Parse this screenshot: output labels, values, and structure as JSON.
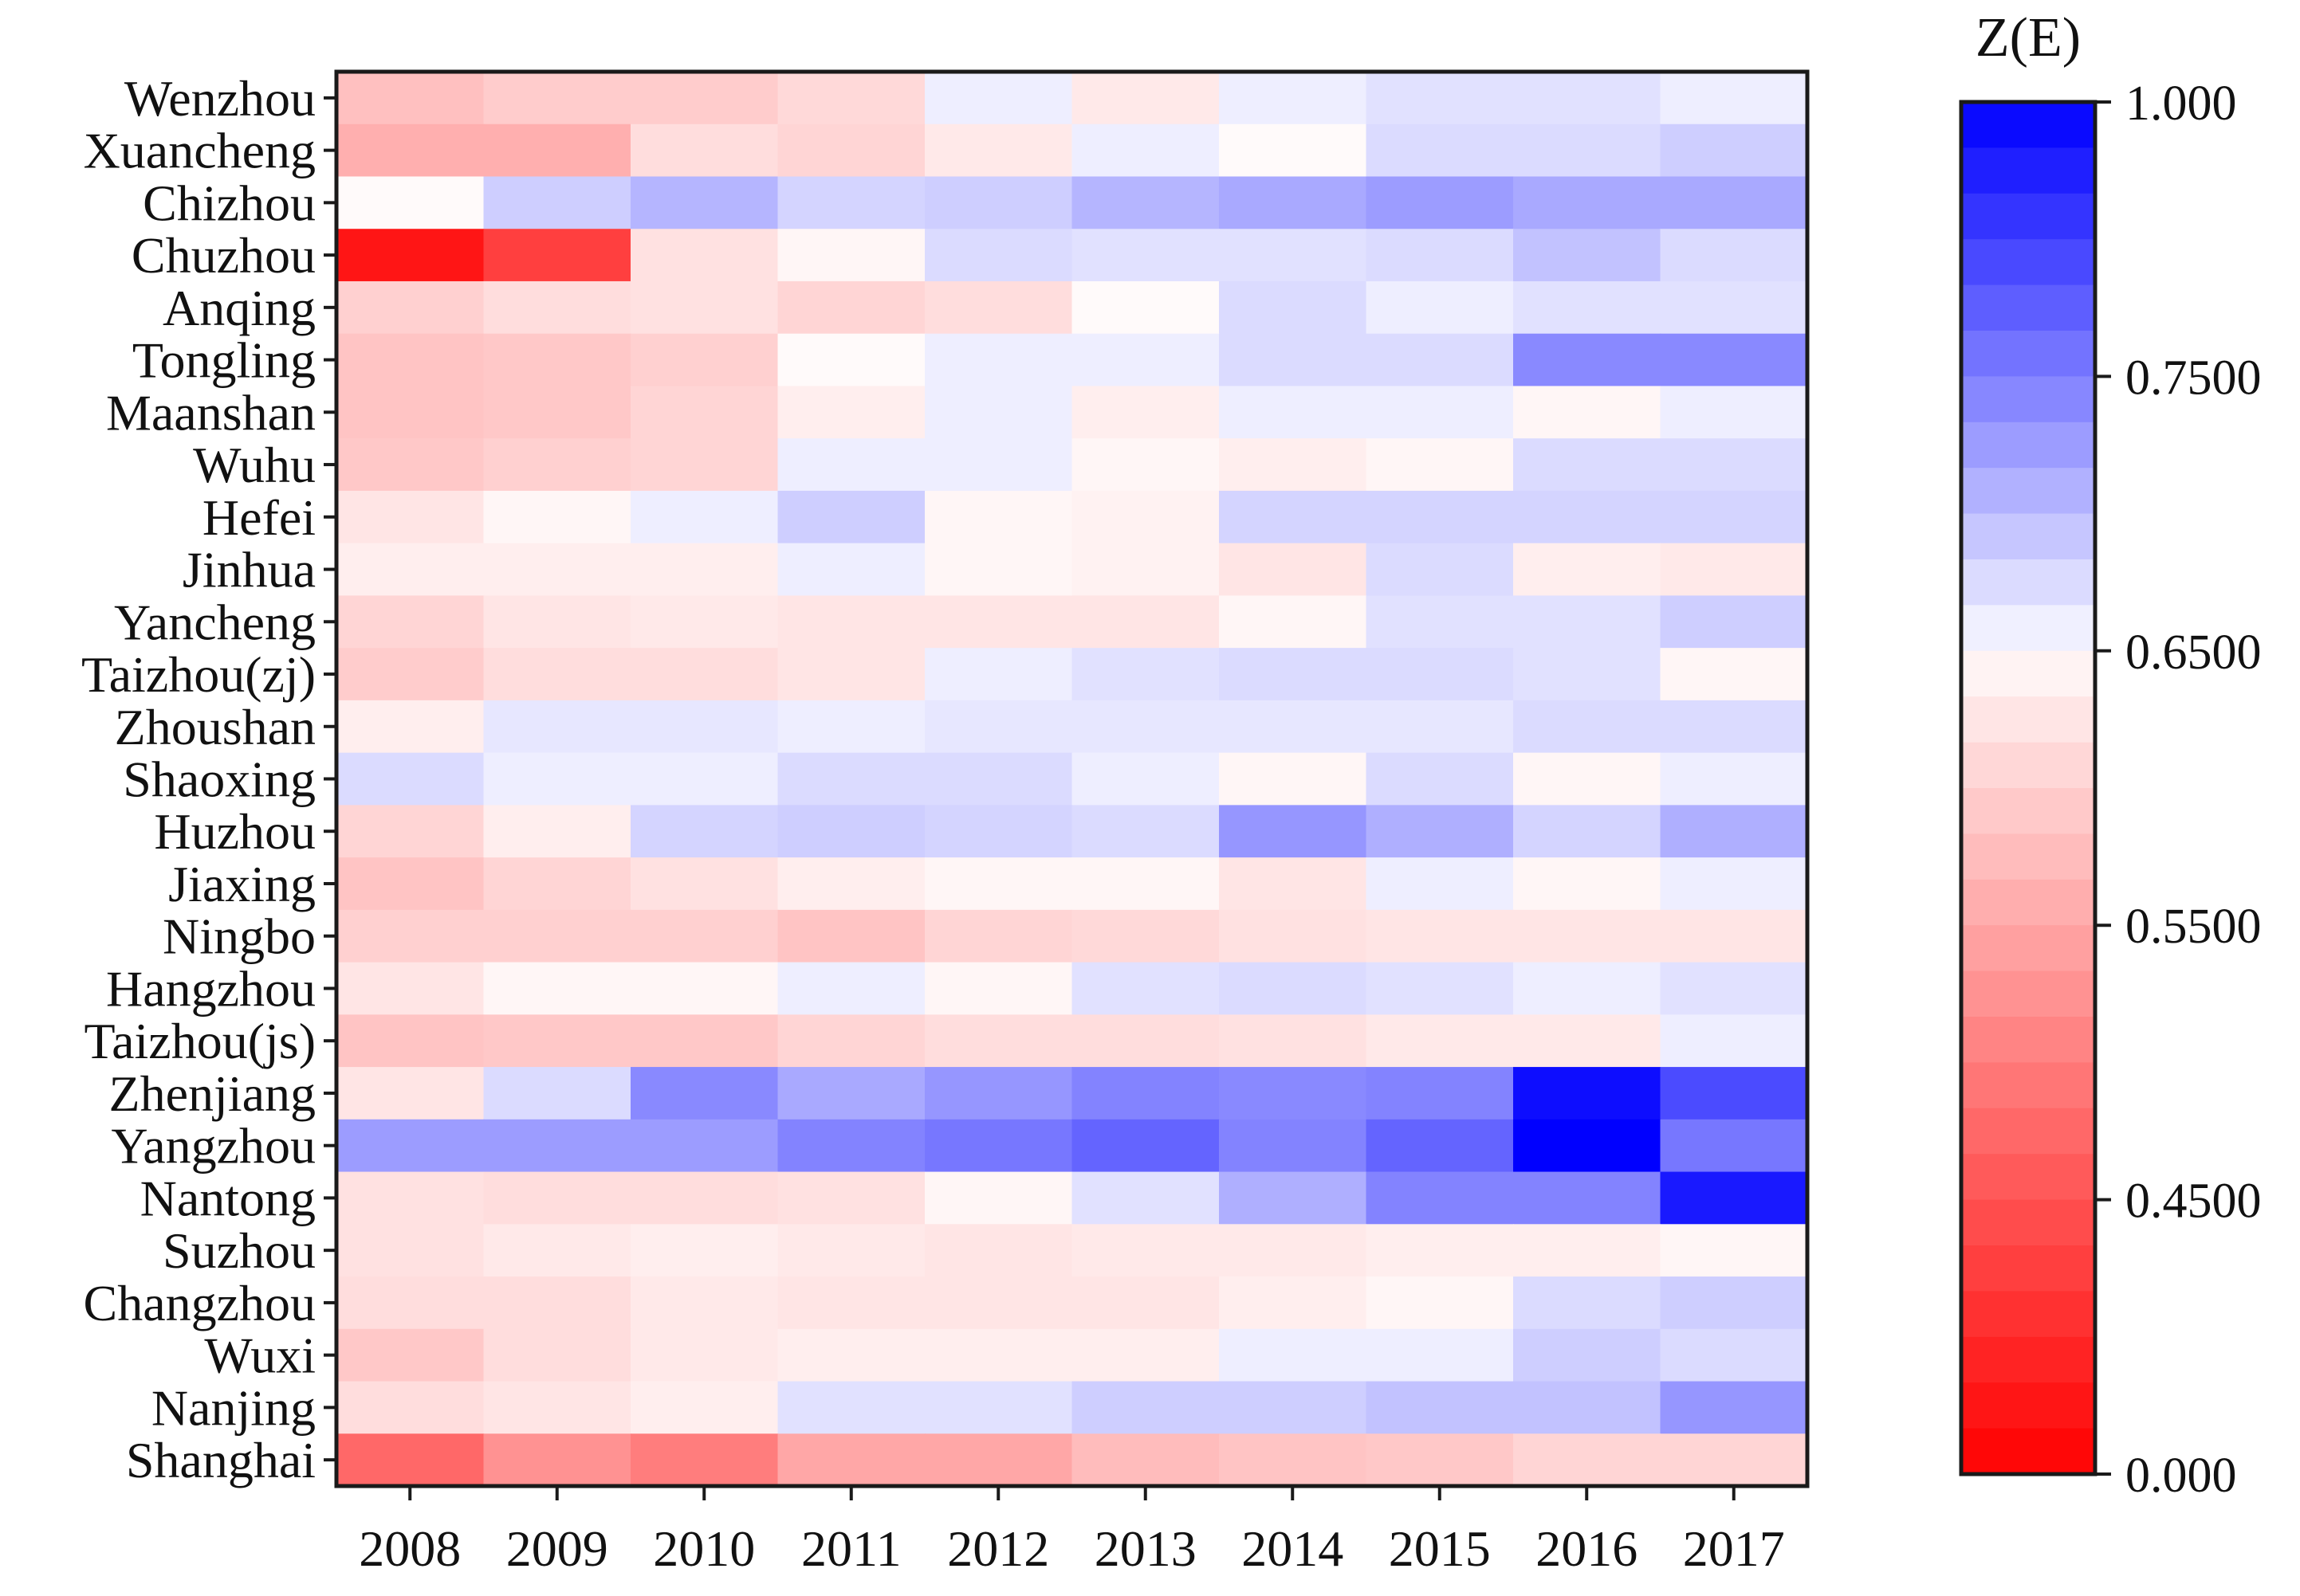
{
  "chart_data": {
    "type": "heatmap",
    "title": "",
    "xlabel": "",
    "ylabel": "",
    "colorbar_title": "Z(E)",
    "colorbar_tick_labels": [
      "1.000",
      "0.7500",
      "0.6500",
      "0.5500",
      "0.4500",
      "0.000"
    ],
    "x": [
      "2008",
      "2009",
      "2010",
      "2011",
      "2012",
      "2013",
      "2014",
      "2015",
      "2016",
      "2017"
    ],
    "y": [
      "Wenzhou",
      "Xuancheng",
      "Chizhou",
      "Chuzhou",
      "Anqing",
      "Tongling",
      "Maanshan",
      "Wuhu",
      "Hefei",
      "Jinhua",
      "Yancheng",
      "Taizhou(zj)",
      "Zhoushan",
      "Shaoxing",
      "Huzhou",
      "Jiaxing",
      "Ningbo",
      "Hangzhou",
      "Taizhou(js)",
      "Zhenjiang",
      "Yangzhou",
      "Nantong",
      "Suzhou",
      "Changzhou",
      "Wuxi",
      "Nanjing",
      "Shanghai"
    ],
    "values": [
      [
        0.46,
        0.49,
        0.49,
        0.52,
        0.62,
        0.56,
        0.62,
        0.64,
        0.64,
        0.62
      ],
      [
        0.42,
        0.42,
        0.53,
        0.51,
        0.56,
        0.62,
        0.6,
        0.65,
        0.65,
        0.67
      ],
      [
        0.6,
        0.67,
        0.71,
        0.66,
        0.67,
        0.71,
        0.73,
        0.75,
        0.73,
        0.73
      ],
      [
        0.05,
        0.15,
        0.54,
        0.59,
        0.65,
        0.64,
        0.64,
        0.65,
        0.69,
        0.65
      ],
      [
        0.5,
        0.53,
        0.54,
        0.51,
        0.53,
        0.6,
        0.65,
        0.62,
        0.64,
        0.64
      ],
      [
        0.47,
        0.48,
        0.5,
        0.6,
        0.62,
        0.62,
        0.65,
        0.65,
        0.78,
        0.78
      ],
      [
        0.47,
        0.48,
        0.51,
        0.57,
        0.62,
        0.57,
        0.62,
        0.62,
        0.59,
        0.62
      ],
      [
        0.48,
        0.5,
        0.51,
        0.62,
        0.62,
        0.59,
        0.57,
        0.59,
        0.65,
        0.65
      ],
      [
        0.55,
        0.59,
        0.62,
        0.67,
        0.59,
        0.58,
        0.66,
        0.66,
        0.66,
        0.66
      ],
      [
        0.57,
        0.57,
        0.57,
        0.62,
        0.59,
        0.58,
        0.55,
        0.65,
        0.57,
        0.56
      ],
      [
        0.51,
        0.55,
        0.56,
        0.55,
        0.55,
        0.55,
        0.59,
        0.64,
        0.64,
        0.67
      ],
      [
        0.49,
        0.53,
        0.53,
        0.55,
        0.62,
        0.64,
        0.65,
        0.65,
        0.64,
        0.59
      ],
      [
        0.57,
        0.63,
        0.63,
        0.62,
        0.63,
        0.63,
        0.63,
        0.63,
        0.65,
        0.65
      ],
      [
        0.65,
        0.62,
        0.62,
        0.65,
        0.65,
        0.62,
        0.59,
        0.65,
        0.59,
        0.62
      ],
      [
        0.51,
        0.57,
        0.66,
        0.67,
        0.66,
        0.65,
        0.76,
        0.72,
        0.66,
        0.72
      ],
      [
        0.47,
        0.51,
        0.54,
        0.57,
        0.59,
        0.59,
        0.55,
        0.62,
        0.59,
        0.62
      ],
      [
        0.5,
        0.5,
        0.5,
        0.47,
        0.51,
        0.52,
        0.54,
        0.55,
        0.55,
        0.55
      ],
      [
        0.55,
        0.59,
        0.59,
        0.62,
        0.59,
        0.64,
        0.65,
        0.64,
        0.62,
        0.64
      ],
      [
        0.47,
        0.48,
        0.48,
        0.51,
        0.53,
        0.53,
        0.54,
        0.56,
        0.56,
        0.62
      ],
      [
        0.55,
        0.65,
        0.78,
        0.73,
        0.76,
        0.79,
        0.78,
        0.79,
        0.98,
        0.88
      ],
      [
        0.75,
        0.75,
        0.75,
        0.79,
        0.81,
        0.84,
        0.79,
        0.84,
        1.0,
        0.81
      ],
      [
        0.54,
        0.53,
        0.53,
        0.54,
        0.59,
        0.64,
        0.72,
        0.79,
        0.79,
        0.96
      ],
      [
        0.54,
        0.56,
        0.57,
        0.56,
        0.55,
        0.56,
        0.56,
        0.57,
        0.57,
        0.59
      ],
      [
        0.53,
        0.53,
        0.56,
        0.55,
        0.55,
        0.55,
        0.57,
        0.59,
        0.65,
        0.67
      ],
      [
        0.48,
        0.53,
        0.56,
        0.57,
        0.57,
        0.57,
        0.62,
        0.62,
        0.67,
        0.65
      ],
      [
        0.53,
        0.55,
        0.57,
        0.64,
        0.64,
        0.67,
        0.67,
        0.69,
        0.69,
        0.76
      ],
      [
        0.25,
        0.35,
        0.3,
        0.4,
        0.4,
        0.45,
        0.47,
        0.48,
        0.51,
        0.51
      ]
    ]
  }
}
